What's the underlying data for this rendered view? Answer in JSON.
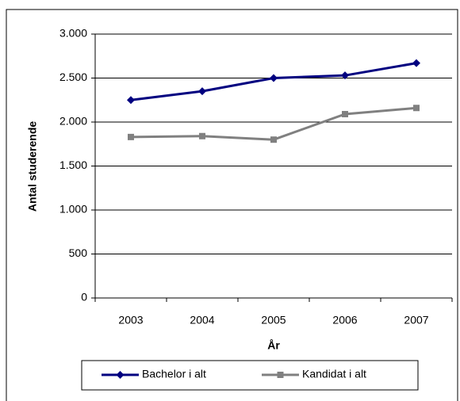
{
  "chart_data": {
    "type": "line",
    "x_label": "År",
    "y_label": "Antal studerende",
    "categories": [
      "2003",
      "2004",
      "2005",
      "2006",
      "2007"
    ],
    "series": [
      {
        "name": "Bachelor i alt",
        "color": "#000080",
        "marker": "diamond",
        "values": [
          2250,
          2350,
          2500,
          2530,
          2670
        ]
      },
      {
        "name": "Kandidat i alt",
        "color": "#808080",
        "marker": "square",
        "values": [
          1830,
          1840,
          1800,
          2090,
          2160
        ]
      }
    ],
    "ylim": [
      0,
      3000
    ],
    "yticks": [
      0,
      500,
      {
        "value": 1000,
        "label": "1.000"
      },
      {
        "value": 1500,
        "label": "1.500"
      },
      {
        "value": 2000,
        "label": "2.000"
      },
      {
        "value": 2500,
        "label": "2.500"
      },
      {
        "value": 3000,
        "label": "3.000"
      }
    ],
    "grid": true,
    "legend": "bottom"
  }
}
